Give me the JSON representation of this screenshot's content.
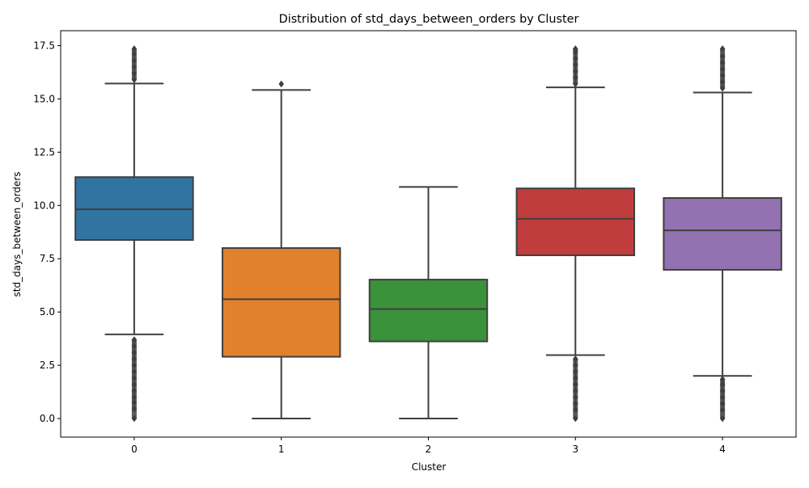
{
  "chart_data": {
    "type": "box",
    "title": "Distribution of std_days_between_orders by Cluster",
    "xlabel": "Cluster",
    "ylabel": "std_days_between_orders",
    "ylim": [
      -0.87,
      18.2
    ],
    "yticks": [
      0.0,
      2.5,
      5.0,
      7.5,
      10.0,
      12.5,
      15.0,
      17.5
    ],
    "ytick_labels": [
      "0.0",
      "2.5",
      "5.0",
      "7.5",
      "10.0",
      "12.5",
      "15.0",
      "17.5"
    ],
    "categories": [
      "0",
      "1",
      "2",
      "3",
      "4"
    ],
    "grid": false,
    "boxes": [
      {
        "category": "0",
        "color": "#3274a1",
        "whisker_low": 3.95,
        "q1": 8.38,
        "median": 9.82,
        "q3": 11.33,
        "whisker_high": 15.72,
        "outliers_low": [
          0.0,
          0.45,
          0.75,
          1.0,
          1.3,
          1.6,
          1.9,
          2.2,
          2.5,
          2.8,
          3.1,
          3.4,
          3.7
        ],
        "outliers_high": [
          15.9,
          16.2,
          16.5,
          16.8,
          17.1,
          17.35
        ]
      },
      {
        "category": "1",
        "color": "#e1812c",
        "whisker_low": 0.0,
        "q1": 2.9,
        "median": 5.6,
        "q3": 8.0,
        "whisker_high": 15.42,
        "outliers_low": [],
        "outliers_high": [
          15.7
        ]
      },
      {
        "category": "2",
        "color": "#3a923a",
        "whisker_low": 0.0,
        "q1": 3.62,
        "median": 5.14,
        "q3": 6.52,
        "whisker_high": 10.87,
        "outliers_low": [],
        "outliers_high": []
      },
      {
        "category": "3",
        "color": "#c03d3e",
        "whisker_low": 2.98,
        "q1": 7.66,
        "median": 9.37,
        "q3": 10.8,
        "whisker_high": 15.54,
        "outliers_low": [
          0.0,
          0.4,
          0.7,
          1.0,
          1.3,
          1.6,
          1.9,
          2.2,
          2.5,
          2.8
        ],
        "outliers_high": [
          15.7,
          16.0,
          16.3,
          16.6,
          16.9,
          17.2,
          17.35
        ]
      },
      {
        "category": "4",
        "color": "#9372b2",
        "whisker_low": 2.0,
        "q1": 6.98,
        "median": 8.83,
        "q3": 10.35,
        "whisker_high": 15.3,
        "outliers_low": [
          0.0,
          0.4,
          0.7,
          1.0,
          1.3,
          1.6,
          1.85
        ],
        "outliers_high": [
          15.5,
          15.8,
          16.1,
          16.4,
          16.7,
          17.0,
          17.35
        ]
      }
    ]
  }
}
